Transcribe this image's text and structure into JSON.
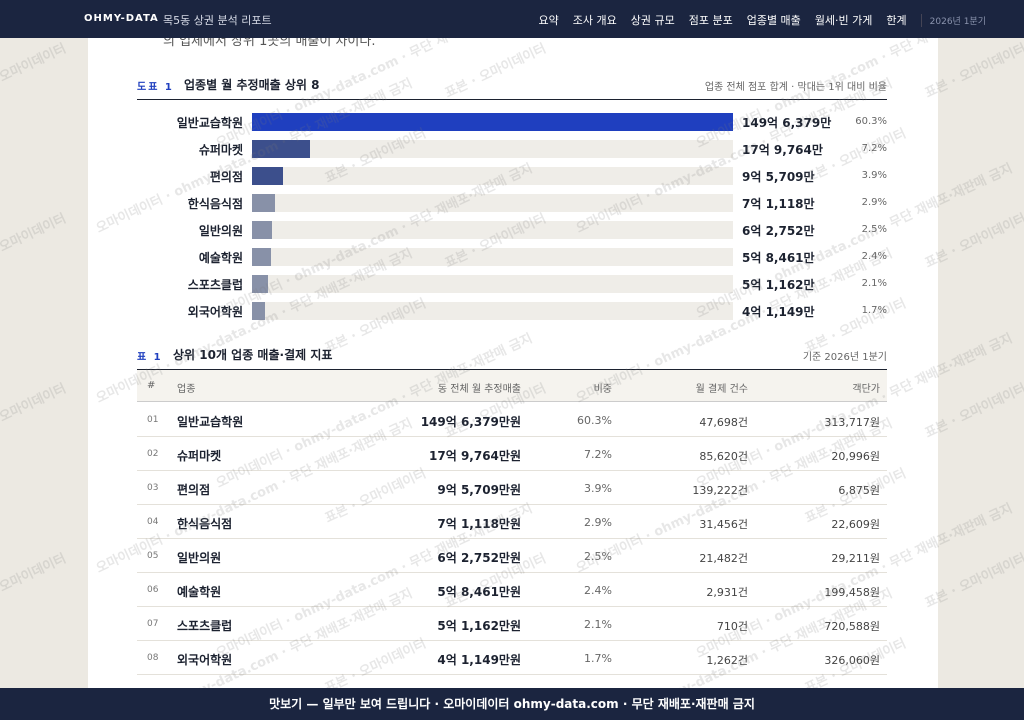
{
  "nav": {
    "brand": "OHMY-DATA",
    "title": "목5동 상권 분석 리포트",
    "items": [
      "요약",
      "조사 개요",
      "상권 규모",
      "점포 분포",
      "업종별 매출",
      "월세·빈 가게",
      "한계"
    ],
    "period": "2026년 1분기"
  },
  "intro": "의 업체에서 상위 1곳의 매출이 차이다.",
  "figure": {
    "label": "도표 1",
    "title": "업종별 월 추정매출 상위 8",
    "note": "업종 전체 점포 합계 · 막대는 1위 대비 비율",
    "chart_data": {
      "type": "bar",
      "categories": [
        "일반교습학원",
        "슈퍼마켓",
        "편의점",
        "한식음식점",
        "일반의원",
        "예술학원",
        "스포츠클럽",
        "외국어학원"
      ],
      "values": [
        1496379,
        179764,
        95709,
        71118,
        62752,
        58461,
        51162,
        41149
      ],
      "value_labels": [
        "149억 6,379만",
        "17억 9,764만",
        "9억 5,709만",
        "7억 1,118만",
        "6억 2,752만",
        "5억 8,461만",
        "5억 1,162만",
        "4억 1,149만"
      ],
      "shares": [
        "60.3%",
        "7.2%",
        "3.9%",
        "2.9%",
        "2.5%",
        "2.4%",
        "2.1%",
        "1.7%"
      ],
      "colors": [
        "#1f3fbf",
        "#3c4f8c",
        "#3c4f8c",
        "#8891a8",
        "#8891a8",
        "#8891a8",
        "#8891a8",
        "#8891a8"
      ]
    }
  },
  "table": {
    "label": "표 1",
    "title": "상위 10개 업종 매출·결제 지표",
    "note": "기준 2026년 1분기",
    "columns": [
      "#",
      "업종",
      "동 전체 월 추정매출",
      "비중",
      "월 결제 건수",
      "객단가"
    ],
    "rows": [
      [
        "01",
        "일반교습학원",
        "149억 6,379만원",
        "60.3%",
        "47,698건",
        "313,717원"
      ],
      [
        "02",
        "슈퍼마켓",
        "17억 9,764만원",
        "7.2%",
        "85,620건",
        "20,996원"
      ],
      [
        "03",
        "편의점",
        "9억 5,709만원",
        "3.9%",
        "139,222건",
        "6,875원"
      ],
      [
        "04",
        "한식음식점",
        "7억 1,118만원",
        "2.9%",
        "31,456건",
        "22,609원"
      ],
      [
        "05",
        "일반의원",
        "6억 2,752만원",
        "2.5%",
        "21,482건",
        "29,211원"
      ],
      [
        "06",
        "예술학원",
        "5억 8,461만원",
        "2.4%",
        "2,931건",
        "199,458원"
      ],
      [
        "07",
        "스포츠클럽",
        "5억 1,162만원",
        "2.1%",
        "710건",
        "720,588원"
      ],
      [
        "08",
        "외국어학원",
        "4억 1,149만원",
        "1.7%",
        "1,262건",
        "326,060원"
      ]
    ]
  },
  "footer": "맛보기 — 일부만 보여 드립니다 · 오마이데이터 ohmy-data.com · 무단 재배포·재판매 금지",
  "watermarks": [
    "표본 · 오마이데이터",
    "오마이데이터 · ohmy-data.com · 무단 재배포·재판매 금지"
  ]
}
